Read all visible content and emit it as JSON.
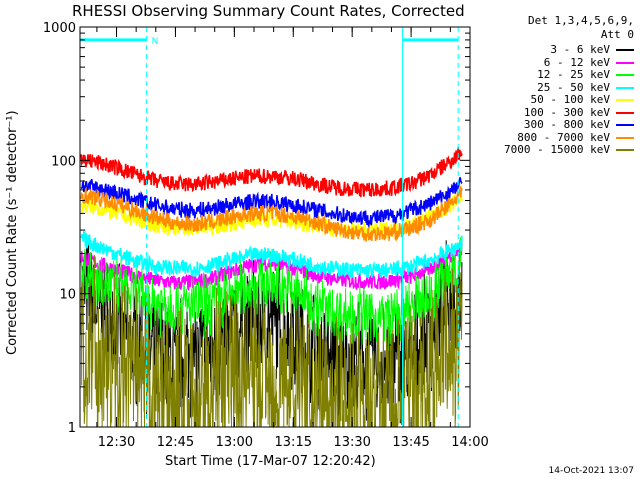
{
  "chart_data": {
    "type": "line",
    "title": "RHESSI Observing Summary Count Rates, Corrected",
    "ylabel": "Corrected Count Rate (s⁻¹ detector⁻¹)",
    "xlabel": "Start Time (17-Mar-07 12:20:42)",
    "y_scale": "log",
    "ylim": [
      1,
      1000
    ],
    "y_ticks": [
      "1",
      "10",
      "100",
      "1000"
    ],
    "x_range": [
      "12:20:42",
      "14:00"
    ],
    "x_ticks": [
      "12:30",
      "12:45",
      "13:00",
      "13:15",
      "13:30",
      "13:45",
      "14:00"
    ],
    "legend_header": [
      "Det 1,3,4,5,6,9,",
      "Att 0"
    ],
    "series": [
      {
        "name": "3 - 6 keV",
        "color": "#000000",
        "x": [
          "12:21",
          "12:25",
          "12:30",
          "12:35",
          "12:40",
          "12:45",
          "12:50",
          "12:55",
          "13:00",
          "13:05",
          "13:10",
          "13:15",
          "13:20",
          "13:25",
          "13:30",
          "13:35",
          "13:40",
          "13:45",
          "13:50",
          "13:55",
          "13:58"
        ],
        "values": [
          11,
          8,
          5.5,
          4.2,
          3.5,
          3.4,
          3.3,
          3.8,
          5,
          6,
          6.2,
          5,
          4,
          3.3,
          3,
          3,
          3,
          3.3,
          5,
          9,
          12
        ]
      },
      {
        "name": "6 - 12 keV",
        "color": "#ff00ff",
        "x": [
          "12:21",
          "12:25",
          "12:30",
          "12:35",
          "12:40",
          "12:45",
          "12:50",
          "12:55",
          "13:00",
          "13:05",
          "13:10",
          "13:15",
          "13:20",
          "13:25",
          "13:30",
          "13:35",
          "13:40",
          "13:45",
          "13:50",
          "13:55",
          "13:58"
        ],
        "values": [
          19,
          17,
          15,
          13.5,
          12.5,
          12,
          12.2,
          13,
          15,
          16.5,
          17,
          15.5,
          14,
          13,
          12.5,
          12.3,
          12.5,
          13.5,
          15.5,
          19,
          22
        ]
      },
      {
        "name": "12 - 25 keV",
        "color": "#00ff00",
        "x": [
          "12:21",
          "12:25",
          "12:30",
          "12:35",
          "12:40",
          "12:45",
          "12:50",
          "12:55",
          "13:00",
          "13:05",
          "13:10",
          "13:15",
          "13:20",
          "13:25",
          "13:30",
          "13:35",
          "13:40",
          "13:45",
          "13:50",
          "13:55",
          "13:58"
        ],
        "values": [
          15,
          13,
          11,
          9.5,
          8.5,
          8,
          8,
          8.7,
          10,
          11.5,
          11.8,
          10.5,
          8.5,
          7.3,
          6.8,
          6.6,
          6.7,
          7.5,
          10,
          14,
          18
        ]
      },
      {
        "name": "25 - 50 keV",
        "color": "#00ffff",
        "x": [
          "12:21",
          "12:25",
          "12:30",
          "12:35",
          "12:40",
          "12:45",
          "12:50",
          "12:55",
          "13:00",
          "13:05",
          "13:10",
          "13:15",
          "13:20",
          "13:25",
          "13:30",
          "13:35",
          "13:40",
          "13:45",
          "13:50",
          "13:55",
          "13:58"
        ],
        "values": [
          26,
          23,
          20,
          17.5,
          16,
          15.5,
          15.5,
          16.5,
          18,
          19.5,
          19.5,
          18,
          16.5,
          15.5,
          15,
          14.8,
          15,
          16,
          18,
          21,
          24
        ]
      },
      {
        "name": "50 - 100 keV",
        "color": "#ffff00",
        "x": [
          "12:21",
          "12:25",
          "12:30",
          "12:35",
          "12:40",
          "12:45",
          "12:50",
          "12:55",
          "13:00",
          "13:05",
          "13:10",
          "13:15",
          "13:20",
          "13:25",
          "13:30",
          "13:35",
          "13:40",
          "13:45",
          "13:50",
          "13:55",
          "13:58"
        ],
        "values": [
          46,
          44,
          40,
          36,
          33,
          31,
          31,
          32,
          34,
          36,
          36,
          35,
          33,
          31,
          30,
          30,
          30.5,
          33,
          38,
          46,
          53
        ]
      },
      {
        "name": "100 - 300 keV",
        "color": "#ff0000",
        "x": [
          "12:21",
          "12:25",
          "12:30",
          "12:35",
          "12:40",
          "12:45",
          "12:50",
          "12:55",
          "13:00",
          "13:05",
          "13:10",
          "13:15",
          "13:20",
          "13:25",
          "13:30",
          "13:35",
          "13:40",
          "13:45",
          "13:50",
          "13:55",
          "13:58"
        ],
        "values": [
          102,
          97,
          88,
          78,
          70,
          66,
          66,
          69,
          73,
          76,
          76,
          73,
          68,
          63,
          61,
          60,
          62,
          67,
          78,
          98,
          118
        ]
      },
      {
        "name": "300 - 800 keV",
        "color": "#0000ff",
        "x": [
          "12:21",
          "12:25",
          "12:30",
          "12:35",
          "12:40",
          "12:45",
          "12:50",
          "12:55",
          "13:00",
          "13:05",
          "13:10",
          "13:15",
          "13:20",
          "13:25",
          "13:30",
          "13:35",
          "13:40",
          "13:45",
          "13:50",
          "13:55",
          "13:58"
        ],
        "values": [
          65,
          62,
          57,
          51,
          46,
          43,
          42,
          44,
          47,
          49,
          49,
          46,
          43,
          40,
          38,
          37,
          38,
          42,
          48,
          58,
          67
        ]
      },
      {
        "name": "800 - 7000 keV",
        "color": "#ff8c00",
        "x": [
          "12:21",
          "12:25",
          "12:30",
          "12:35",
          "12:40",
          "12:45",
          "12:50",
          "12:55",
          "13:00",
          "13:05",
          "13:10",
          "13:15",
          "13:20",
          "13:25",
          "13:30",
          "13:35",
          "13:40",
          "13:45",
          "13:50",
          "13:55",
          "13:58"
        ],
        "values": [
          55,
          52,
          47,
          42,
          37,
          34,
          33,
          35,
          38,
          40,
          40,
          38,
          35,
          31,
          29,
          28,
          28.5,
          31,
          36,
          47,
          58
        ]
      },
      {
        "name": "7000 - 15000 keV",
        "color": "#808000",
        "x": [
          "12:21",
          "12:25",
          "12:30",
          "12:35",
          "12:40",
          "12:45",
          "12:50",
          "12:55",
          "13:00",
          "13:05",
          "13:10",
          "13:15",
          "13:20",
          "13:25",
          "13:30",
          "13:35",
          "13:40",
          "13:45",
          "13:50",
          "13:55",
          "13:58"
        ],
        "values": [
          4.5,
          3.5,
          2.8,
          2,
          1.7,
          1.6,
          1.7,
          2,
          2.4,
          2.6,
          2.5,
          2.2,
          1.8,
          1.6,
          1.5,
          1.5,
          1.6,
          1.9,
          2.6,
          3.8,
          5
        ]
      }
    ],
    "markers": {
      "color": "#00ffff",
      "solid_lines_at": [
        "12:20:42",
        "13:42:50"
      ],
      "dashed_lines_at": [
        "12:37:40",
        "13:57:00"
      ],
      "bar_segments": [
        [
          "12:20:42",
          "12:37:40"
        ],
        [
          "13:42:50",
          "13:57:00"
        ]
      ],
      "bar_level": 800,
      "bar_label": "N",
      "bar_label_at": "12:38:10"
    }
  },
  "stamp": "14-Oct-2021 13:07"
}
